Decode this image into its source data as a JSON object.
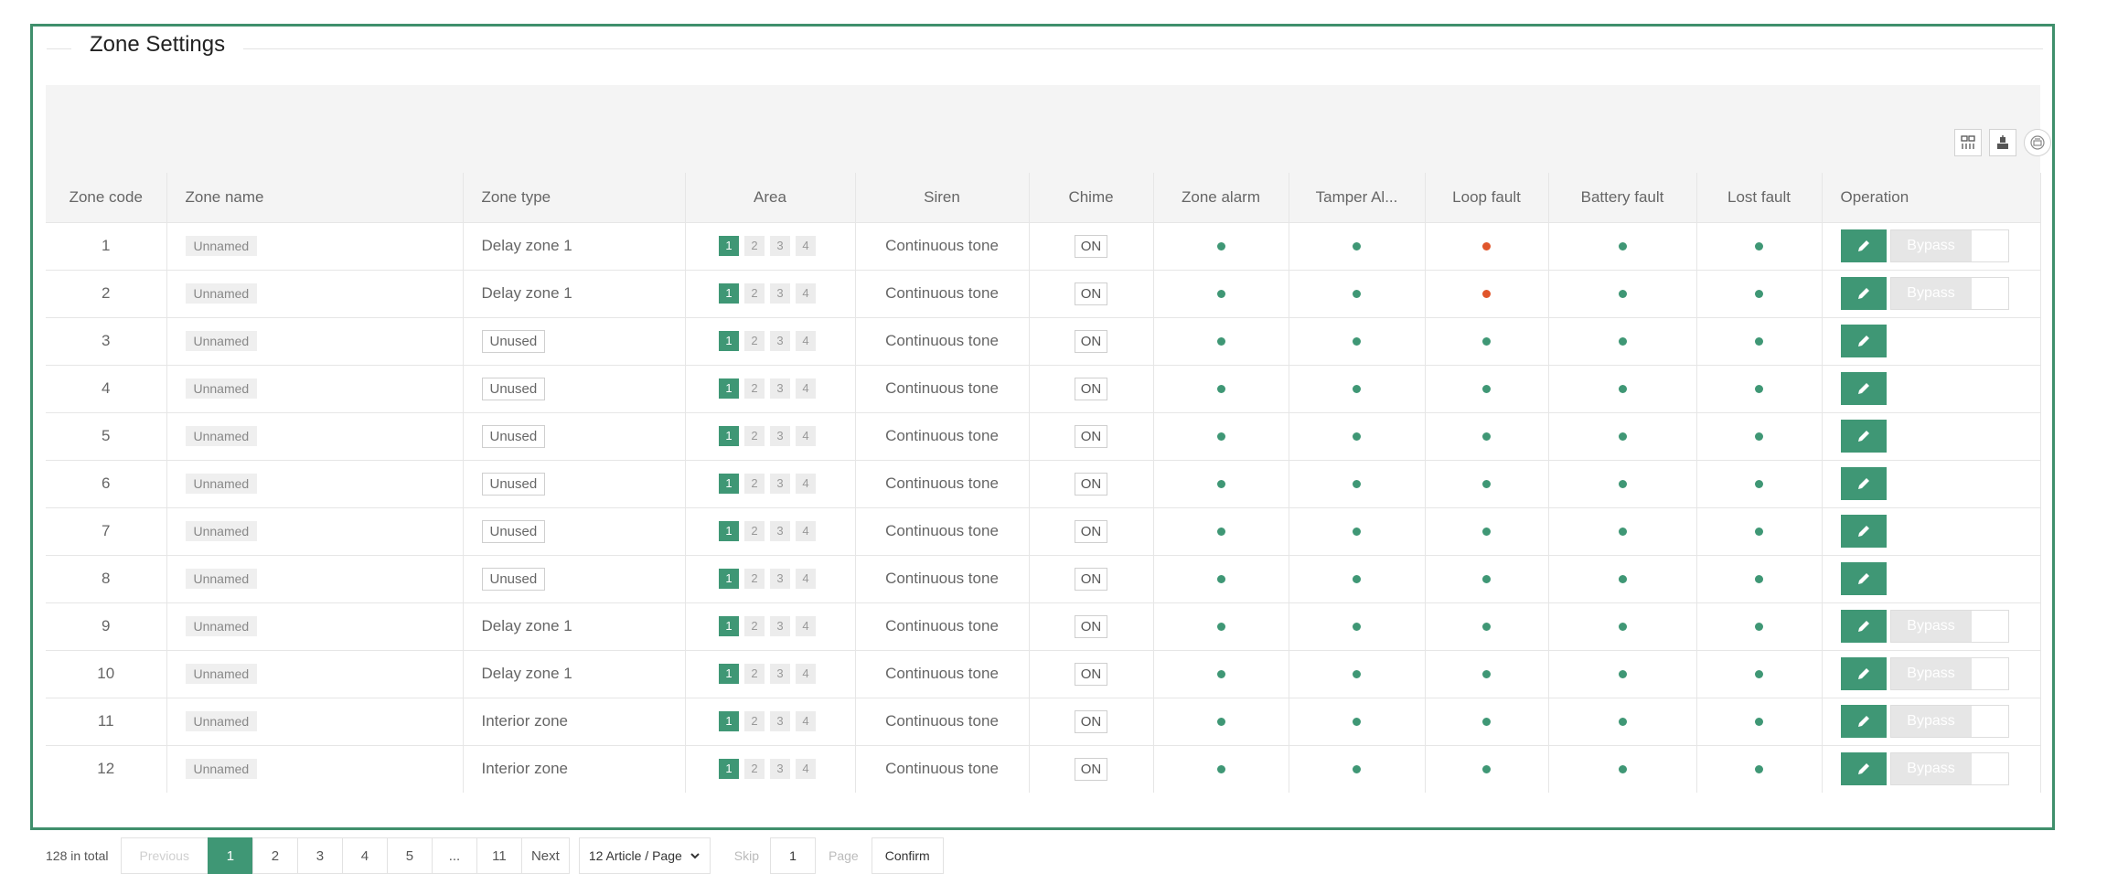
{
  "title": "Zone Settings",
  "colors": {
    "accent": "#3f9775",
    "fault": "#e0552b",
    "frame": "#3f8f6c"
  },
  "toolbar": {
    "icons": [
      "columns-icon",
      "export-icon",
      "print-icon"
    ]
  },
  "columns": [
    "Zone code",
    "Zone name",
    "Zone type",
    "Area",
    "Siren",
    "Chime",
    "Zone alarm",
    "Tamper Al...",
    "Loop fault",
    "Battery fault",
    "Lost fault",
    "Operation"
  ],
  "area_labels": [
    "1",
    "2",
    "3",
    "4"
  ],
  "bypass_label": "Bypass",
  "rows": [
    {
      "code": "1",
      "name": "Unnamed",
      "type": "Delay zone 1",
      "type_tag": false,
      "siren": "Continuous tone",
      "chime": "ON",
      "loop_fault": true,
      "bypass": true
    },
    {
      "code": "2",
      "name": "Unnamed",
      "type": "Delay zone 1",
      "type_tag": false,
      "siren": "Continuous tone",
      "chime": "ON",
      "loop_fault": true,
      "bypass": true
    },
    {
      "code": "3",
      "name": "Unnamed",
      "type": "Unused",
      "type_tag": true,
      "siren": "Continuous tone",
      "chime": "ON",
      "loop_fault": false,
      "bypass": false
    },
    {
      "code": "4",
      "name": "Unnamed",
      "type": "Unused",
      "type_tag": true,
      "siren": "Continuous tone",
      "chime": "ON",
      "loop_fault": false,
      "bypass": false
    },
    {
      "code": "5",
      "name": "Unnamed",
      "type": "Unused",
      "type_tag": true,
      "siren": "Continuous tone",
      "chime": "ON",
      "loop_fault": false,
      "bypass": false
    },
    {
      "code": "6",
      "name": "Unnamed",
      "type": "Unused",
      "type_tag": true,
      "siren": "Continuous tone",
      "chime": "ON",
      "loop_fault": false,
      "bypass": false
    },
    {
      "code": "7",
      "name": "Unnamed",
      "type": "Unused",
      "type_tag": true,
      "siren": "Continuous tone",
      "chime": "ON",
      "loop_fault": false,
      "bypass": false
    },
    {
      "code": "8",
      "name": "Unnamed",
      "type": "Unused",
      "type_tag": true,
      "siren": "Continuous tone",
      "chime": "ON",
      "loop_fault": false,
      "bypass": false
    },
    {
      "code": "9",
      "name": "Unnamed",
      "type": "Delay zone 1",
      "type_tag": false,
      "siren": "Continuous tone",
      "chime": "ON",
      "loop_fault": false,
      "bypass": true
    },
    {
      "code": "10",
      "name": "Unnamed",
      "type": "Delay zone 1",
      "type_tag": false,
      "siren": "Continuous tone",
      "chime": "ON",
      "loop_fault": false,
      "bypass": true
    },
    {
      "code": "11",
      "name": "Unnamed",
      "type": "Interior zone",
      "type_tag": false,
      "siren": "Continuous tone",
      "chime": "ON",
      "loop_fault": false,
      "bypass": true
    },
    {
      "code": "12",
      "name": "Unnamed",
      "type": "Interior zone",
      "type_tag": false,
      "siren": "Continuous tone",
      "chime": "ON",
      "loop_fault": false,
      "bypass": true
    }
  ],
  "pagination": {
    "total": "128 in total",
    "previous": "Previous",
    "pages": [
      "1",
      "2",
      "3",
      "4",
      "5",
      "...",
      "11"
    ],
    "current": "1",
    "next": "Next",
    "per_page": "12 Article / Page",
    "skip": "Skip",
    "page_input": "1",
    "page_word": "Page",
    "confirm": "Confirm"
  }
}
